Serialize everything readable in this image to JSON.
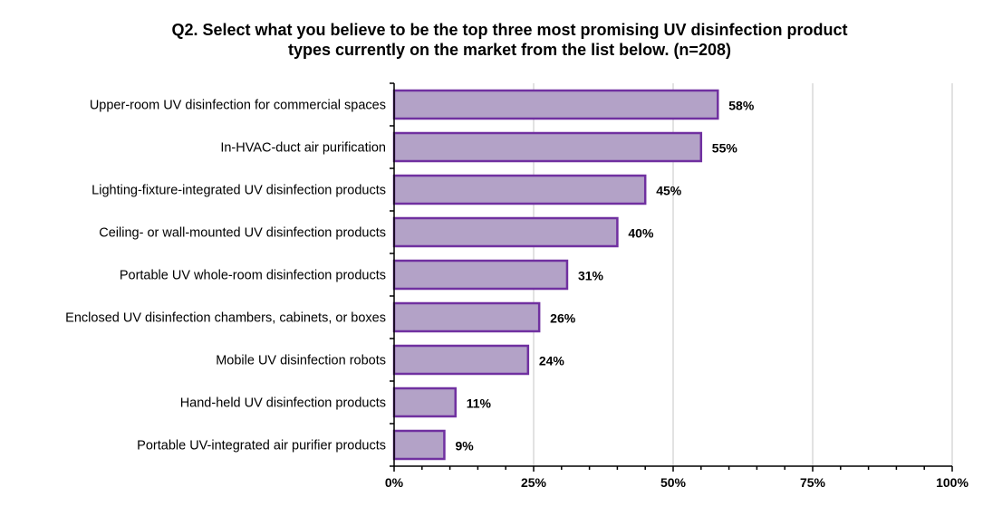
{
  "chart_data": {
    "type": "bar",
    "orientation": "horizontal",
    "title_lines": [
      "Q2. Select what you believe to be the top three most promising UV disinfection product",
      "types currently on the market from the list below. (n=208)"
    ],
    "categories": [
      "Upper-room UV disinfection for commercial spaces",
      "In-HVAC-duct air purification",
      "Lighting-fixture-integrated UV disinfection products",
      "Ceiling- or wall-mounted UV disinfection products",
      "Portable UV whole-room disinfection products",
      "Enclosed UV disinfection chambers, cabinets, or boxes",
      "Mobile UV disinfection robots",
      "Hand-held UV disinfection products",
      "Portable UV-integrated air purifier products"
    ],
    "values": [
      58,
      55,
      45,
      40,
      31,
      26,
      24,
      11,
      9
    ],
    "value_labels": [
      "58%",
      "55%",
      "45%",
      "40%",
      "31%",
      "26%",
      "24%",
      "11%",
      "9%"
    ],
    "xlim": [
      0,
      100
    ],
    "xticks": [
      0,
      25,
      50,
      75,
      100
    ],
    "xtick_labels": [
      "0%",
      "25%",
      "50%",
      "75%",
      "100%"
    ],
    "grid": true,
    "bar_fill": "#b3a2c7",
    "bar_stroke": "#7030a0",
    "grid_color": "#d9d9d9"
  }
}
